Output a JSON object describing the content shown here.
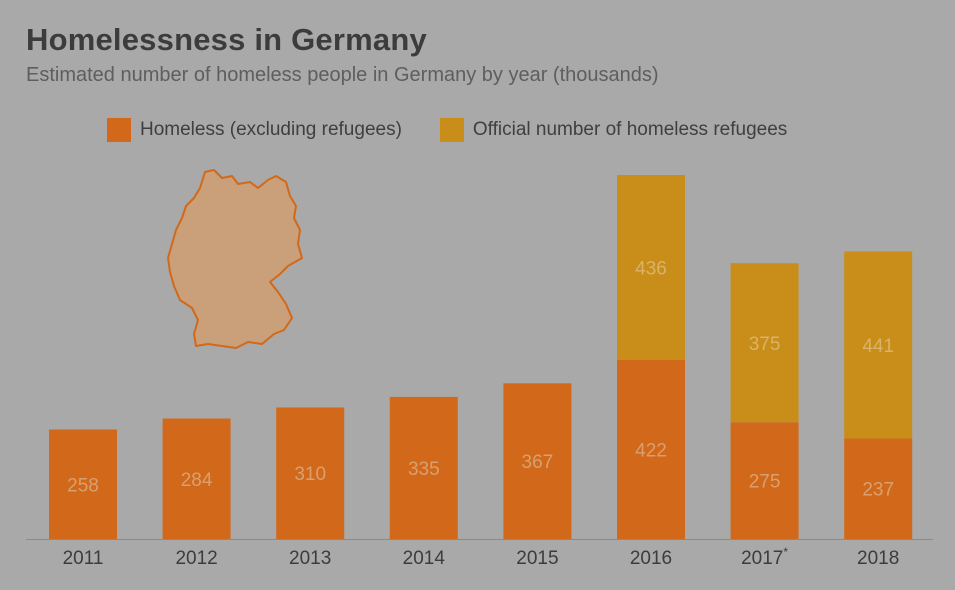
{
  "colors": {
    "homeless": "#d2691a",
    "refugees": "#c98e1a",
    "map_fill": "#c9a07a",
    "map_stroke": "#d2691a",
    "axis": "#8a8a8a"
  },
  "chart_data": {
    "type": "bar",
    "stacked": true,
    "title": "Homelessness in Germany",
    "subtitle": "Estimated number of homeless people in Germany by year (thousands)",
    "categories": [
      "2011",
      "2012",
      "2013",
      "2014",
      "2015",
      "2016",
      "2017*",
      "2018"
    ],
    "series": [
      {
        "name": "Homeless (excluding refugees)",
        "values": [
          258,
          284,
          310,
          335,
          367,
          422,
          275,
          237
        ]
      },
      {
        "name": "Official number of homeless refugees",
        "values": [
          null,
          null,
          null,
          null,
          null,
          436,
          375,
          441
        ]
      }
    ],
    "legend_position": "top",
    "grid": false,
    "ylim": [
      0,
      900
    ]
  }
}
